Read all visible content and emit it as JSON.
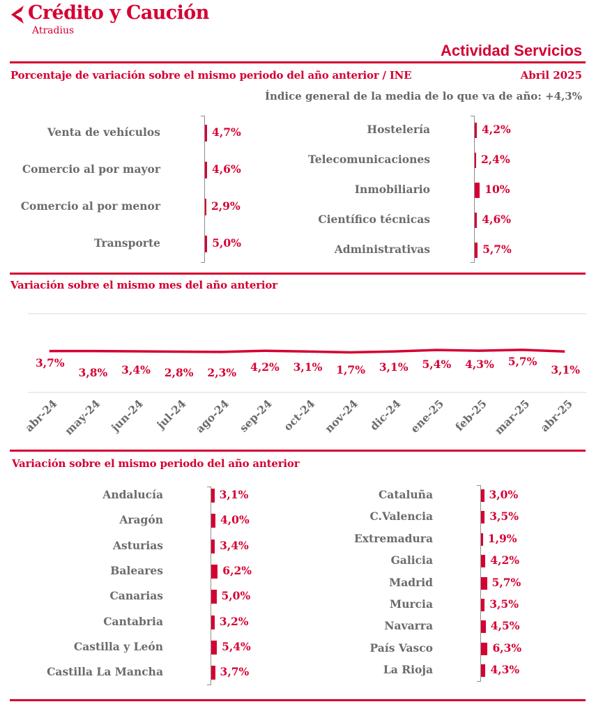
{
  "header": {
    "brand": "Crédito y Caución",
    "brand_sub": "Atradius",
    "sector": "Actividad Servicios",
    "subtitle": "Porcentaje de variación sobre el mismo periodo del año anterior / INE",
    "period": "Abril 2025",
    "index_line": "Índice general de la media de lo que va de año:  +4,3%"
  },
  "colors": {
    "accent": "#d50032",
    "label_grey": "#666666",
    "grid": "#d9d9d9"
  },
  "chart_data": [
    {
      "type": "bar",
      "orientation": "horizontal",
      "categories": [
        "Venta de vehículos",
        "Comercio al por mayor",
        "Comercio al por menor",
        "Transporte"
      ],
      "values": [
        4.7,
        4.6,
        2.9,
        5.0
      ],
      "labels": [
        "4,7%",
        "4,6%",
        "2,9%",
        "5,0%"
      ]
    },
    {
      "type": "bar",
      "orientation": "horizontal",
      "categories": [
        "Hostelería",
        "Telecomunicaciones",
        "Inmobiliario",
        "Científico técnicas",
        "Administrativas"
      ],
      "values": [
        4.2,
        2.4,
        10,
        4.6,
        5.7
      ],
      "labels": [
        "4,2%",
        "2,4%",
        "10%",
        "4,6%",
        "5,7%"
      ]
    },
    {
      "type": "line",
      "title": "Variación sobre el mismo mes del año anterior",
      "x": [
        "abr-24",
        "may-24",
        "jun-24",
        "jul-24",
        "ago-24",
        "sep-24",
        "oct-24",
        "nov-24",
        "dic-24",
        "ene-25",
        "feb-25",
        "mar-25",
        "abr-25"
      ],
      "values": [
        3.7,
        3.8,
        3.4,
        2.8,
        2.3,
        4.2,
        3.1,
        1.7,
        3.1,
        5.4,
        4.3,
        5.7,
        3.1
      ],
      "labels": [
        "3,7%",
        "3,8%",
        "3,4%",
        "2,8%",
        "2,3%",
        "4,2%",
        "3,1%",
        "1,7%",
        "3,1%",
        "5,4%",
        "4,3%",
        "5,7%",
        "3,1%"
      ],
      "grid": true
    },
    {
      "type": "bar",
      "orientation": "horizontal",
      "title": "Variación sobre el mismo periodo del año anterior",
      "categories": [
        "Andalucía",
        "Aragón",
        "Asturias",
        "Baleares",
        "Canarias",
        "Cantabria",
        "Castilla y León",
        "Castilla La Mancha"
      ],
      "values": [
        3.1,
        4.0,
        3.4,
        6.2,
        5.0,
        3.2,
        5.4,
        3.7
      ],
      "labels": [
        "3,1%",
        "4,0%",
        "3,4%",
        "6,2%",
        "5,0%",
        "3,2%",
        "5,4%",
        "3,7%"
      ]
    },
    {
      "type": "bar",
      "orientation": "horizontal",
      "categories": [
        "Cataluña",
        "C.Valencia",
        "Extremadura",
        "Galicia",
        "Madrid",
        "Murcia",
        "Navarra",
        "País Vasco",
        "La Rioja"
      ],
      "values": [
        3.0,
        3.5,
        1.9,
        4.2,
        5.7,
        3.5,
        4.5,
        6.3,
        4.3
      ],
      "labels": [
        "3,0%",
        "3,5%",
        "1,9%",
        "4,2%",
        "5,7%",
        "3,5%",
        "4,5%",
        "6,3%",
        "4,3%"
      ]
    }
  ]
}
